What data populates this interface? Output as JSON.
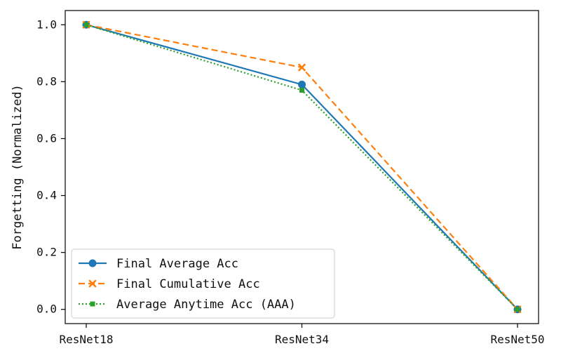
{
  "chart_data": {
    "type": "line",
    "categories": [
      "ResNet18",
      "ResNet34",
      "ResNet50"
    ],
    "ylabel": "Forgetting (Normalized)",
    "xlabel": "",
    "ylim": [
      -0.05,
      1.05
    ],
    "yticks": [
      "0.0",
      "0.2",
      "0.4",
      "0.6",
      "0.8",
      "1.0"
    ],
    "grid": false,
    "legend_position": "bottom-left",
    "series": [
      {
        "name": "Final Average Acc",
        "values": [
          1.0,
          0.79,
          0.0
        ],
        "color": "#1f77b4",
        "marker": "circle",
        "linestyle": "solid"
      },
      {
        "name": "Final Cumulative Acc",
        "values": [
          1.0,
          0.85,
          0.0
        ],
        "color": "#ff7f0e",
        "marker": "x",
        "linestyle": "dashed"
      },
      {
        "name": "Average Anytime Acc (AAA)",
        "values": [
          1.0,
          0.77,
          0.0
        ],
        "color": "#2ca02c",
        "marker": "square",
        "linestyle": "dotted"
      }
    ]
  }
}
